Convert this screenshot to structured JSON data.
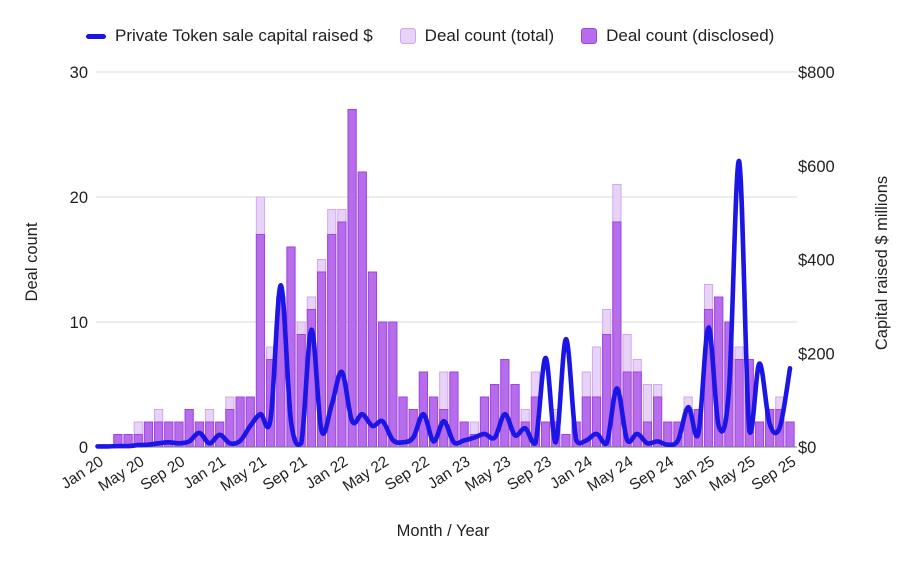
{
  "legend": {
    "items": [
      {
        "label": "Private Token sale capital raised $",
        "marker": "line-dash",
        "color": "#1b15e6"
      },
      {
        "label": "Deal count (total)",
        "marker": "square",
        "color": "#e8d2f8",
        "border": "#cfa9ef"
      },
      {
        "label": "Deal count (disclosed)",
        "marker": "square",
        "color": "#b76ceb",
        "border": "#9e45e0"
      }
    ]
  },
  "colors": {
    "line_blue": "#1b15e6",
    "bar_total_fill": "#e8d2f8",
    "bar_total_border": "#cfa9ef",
    "bar_disclosed_fill": "#b76ceb",
    "bar_disclosed_border": "#9e45e0",
    "gridline": "#d9d9d9",
    "axis_line": "#757575",
    "text": "#1f1f1f"
  },
  "chart_data": {
    "type": "combo (bar + smooth line)",
    "title": "",
    "xlabel": "Month / Year",
    "ylabel_left": "Deal count",
    "ylabel_right": "Capital raised $ millions",
    "ylim_left": [
      0,
      30
    ],
    "ylim_right": [
      0,
      800
    ],
    "y_left_ticks": [
      "0",
      "10",
      "20",
      "30"
    ],
    "y_right_ticks": [
      "$0",
      "$200",
      "$400",
      "$600",
      "$800"
    ],
    "grid": "horizontal only",
    "legend_position": "top",
    "x_tick_every": 4,
    "x_tick_labels": [
      "Jan 20",
      "May 20",
      "Sep 20",
      "Jan 21",
      "May 21",
      "Sep 21",
      "Jan 22",
      "May 22",
      "Sep 22",
      "Jan 23",
      "May 23",
      "Sep 23",
      "Jan 24",
      "May 24",
      "Sep 24",
      "Jan 25",
      "May 25",
      "Sep 25"
    ],
    "x": [
      "Jan 20",
      "Feb 20",
      "Mar 20",
      "Apr 20",
      "May 20",
      "Jun 20",
      "Jul 20",
      "Aug 20",
      "Sep 20",
      "Oct 20",
      "Nov 20",
      "Dec 20",
      "Jan 21",
      "Feb 21",
      "Mar 21",
      "Apr 21",
      "May 21",
      "Jun 21",
      "Jul 21",
      "Aug 21",
      "Sep 21",
      "Oct 21",
      "Nov 21",
      "Dec 21",
      "Jan 22",
      "Feb 22",
      "Mar 22",
      "Apr 22",
      "May 22",
      "Jun 22",
      "Jul 22",
      "Aug 22",
      "Sep 22",
      "Oct 22",
      "Nov 22",
      "Dec 22",
      "Jan 23",
      "Feb 23",
      "Mar 23",
      "Apr 23",
      "May 23",
      "Jun 23",
      "Jul 23",
      "Aug 23",
      "Sep 23",
      "Oct 23",
      "Nov 23",
      "Dec 23",
      "Jan 24",
      "Feb 24",
      "Mar 24",
      "Apr 24",
      "May 24",
      "Jun 24",
      "Jul 24",
      "Aug 24",
      "Sep 24",
      "Oct 24",
      "Nov 24",
      "Dec 24",
      "Jan 25",
      "Feb 25",
      "Mar 25",
      "Apr 25",
      "May 25",
      "Jun 25",
      "Jul 25",
      "Aug 25",
      "Sep 25"
    ],
    "series": [
      {
        "name": "Private Token sale capital raised $",
        "type": "line",
        "axis": "right",
        "units": "$ millions",
        "color": "#1b15e6",
        "values": [
          1,
          1,
          2,
          2,
          4,
          5,
          8,
          10,
          8,
          12,
          30,
          8,
          26,
          8,
          13,
          45,
          70,
          60,
          345,
          55,
          8,
          250,
          35,
          90,
          160,
          55,
          70,
          45,
          55,
          15,
          10,
          20,
          70,
          12,
          55,
          10,
          14,
          20,
          28,
          20,
          70,
          25,
          40,
          8,
          190,
          10,
          230,
          15,
          14,
          28,
          8,
          125,
          15,
          28,
          8,
          12,
          5,
          14,
          85,
          28,
          255,
          45,
          120,
          610,
          35,
          178,
          50,
          42,
          168
        ]
      },
      {
        "name": "Deal count (total)",
        "type": "bar",
        "axis": "left",
        "color": "#e8d2f8",
        "border": "#cfa9ef",
        "values": [
          0,
          0,
          1,
          1,
          2,
          2,
          3,
          2,
          2,
          3,
          2,
          3,
          2,
          4,
          4,
          4,
          20,
          8,
          12,
          16,
          10,
          12,
          15,
          19,
          19,
          27,
          22,
          14,
          10,
          10,
          4,
          3,
          6,
          4,
          6,
          6,
          2,
          2,
          4,
          5,
          7,
          5,
          3,
          6,
          2,
          3,
          1,
          2,
          6,
          8,
          11,
          21,
          9,
          7,
          5,
          5,
          2,
          2,
          4,
          3,
          13,
          12,
          10,
          8,
          7,
          2,
          3,
          4,
          2
        ]
      },
      {
        "name": "Deal count (disclosed)",
        "type": "bar",
        "axis": "left",
        "color": "#b76ceb",
        "border": "#9e45e0",
        "values": [
          0,
          0,
          1,
          1,
          1,
          2,
          2,
          2,
          2,
          3,
          2,
          2,
          2,
          3,
          4,
          4,
          17,
          7,
          12,
          16,
          9,
          11,
          14,
          17,
          18,
          27,
          22,
          14,
          10,
          10,
          4,
          3,
          6,
          4,
          3,
          6,
          2,
          1,
          4,
          5,
          7,
          5,
          2,
          4,
          2,
          2,
          1,
          2,
          4,
          4,
          9,
          18,
          6,
          6,
          2,
          4,
          2,
          2,
          3,
          3,
          11,
          12,
          10,
          7,
          7,
          2,
          3,
          3,
          2
        ]
      }
    ]
  }
}
